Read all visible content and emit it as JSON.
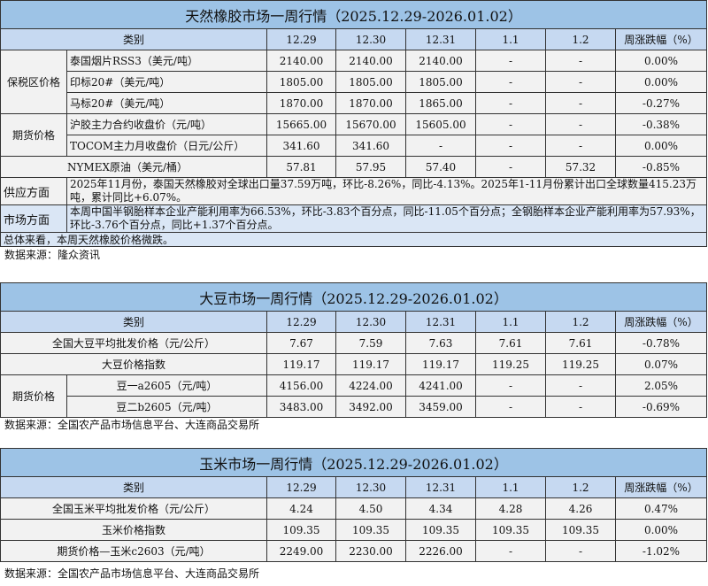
{
  "columns": [
    "类别",
    "12.29",
    "12.30",
    "12.31",
    "1.1",
    "1.2",
    "周涨跌幅（%）"
  ],
  "rubber": {
    "title": "天然橡胶市场一周行情（2025.12.29-2026.01.02）",
    "groups": [
      {
        "label": "保税区价格",
        "rows": [
          {
            "name": "泰国烟片RSS3（美元/吨）",
            "values": [
              "2140.00",
              "2140.00",
              "2140.00",
              "-",
              "-"
            ],
            "change": "0.00%"
          },
          {
            "name": "印标20#（美元/吨）",
            "values": [
              "1805.00",
              "1805.00",
              "1805.00",
              "-",
              "-"
            ],
            "change": "0.00%"
          },
          {
            "name": "马标20#（美元/吨）",
            "values": [
              "1870.00",
              "1870.00",
              "1865.00",
              "-",
              "-"
            ],
            "change": "-0.27%"
          }
        ]
      },
      {
        "label": "期货价格",
        "rows": [
          {
            "name": "沪胶主力合约收盘价（元/吨）",
            "values": [
              "15665.00",
              "15670.00",
              "15605.00",
              "-",
              "-"
            ],
            "change": "-0.38%"
          },
          {
            "name": "TOCOM主力月收盘价（日元/公斤）",
            "values": [
              "341.60",
              "341.60",
              "-",
              "-",
              "-"
            ],
            "change": "0.00%"
          }
        ]
      },
      {
        "label": "",
        "rows": [
          {
            "name": "NYMEX原油（美元/桶）",
            "values": [
              "57.81",
              "57.95",
              "57.40",
              "-",
              "57.32"
            ],
            "change": "-0.85%"
          }
        ]
      }
    ],
    "notes": [
      {
        "label": "供应方面",
        "text": "2025年11月份，泰国天然橡胶对全球出口量37.59万吨，环比-8.26%，同比-4.13%。2025年1-11月份累计出口全球数量415.23万吨，累计同比+6.07%。",
        "style": "gray"
      },
      {
        "label": "市场方面",
        "text": "本周中国半钢胎样本企业产能利用率为66.53%，环比-3.83个百分点，同比-11.05个百分点；全钢胎样本企业产能利用率为57.93%，环比-3.76个百分点，同比+1.37个百分点。",
        "style": "blue"
      }
    ],
    "summary": "总体来看，本周天然橡胶价格微跌。",
    "source": "数据来源：隆众资讯"
  },
  "soybean": {
    "title": "大豆市场一周行情（2025.12.29-2026.01.02）",
    "groups": [
      {
        "label": null,
        "rows": [
          {
            "name": "全国大豆平均批发价格（元/公斤）",
            "values": [
              "7.67",
              "7.59",
              "7.63",
              "7.61",
              "7.61"
            ],
            "change": "-0.78%"
          }
        ]
      },
      {
        "label": null,
        "rows": [
          {
            "name": "大豆价格指数",
            "values": [
              "119.17",
              "119.17",
              "119.17",
              "119.25",
              "119.25"
            ],
            "change": "0.07%"
          }
        ]
      },
      {
        "label": "期货价格",
        "center": true,
        "rows": [
          {
            "name": "豆一a2605（元/吨）",
            "values": [
              "4156.00",
              "4224.00",
              "4241.00",
              "-",
              "-"
            ],
            "change": "2.05%"
          },
          {
            "name": "豆二b2605（元/吨）",
            "values": [
              "3483.00",
              "3492.00",
              "3459.00",
              "-",
              "-"
            ],
            "change": "-0.69%"
          }
        ]
      }
    ],
    "source": "数据来源：全国农产品市场信息平台、大连商品交易所"
  },
  "corn": {
    "title": "玉米市场一周行情（2025.12.29-2026.01.02）",
    "groups": [
      {
        "label": null,
        "rows": [
          {
            "name": "全国玉米平均批发价格（元/公斤）",
            "values": [
              "4.24",
              "4.50",
              "4.34",
              "4.28",
              "4.26"
            ],
            "change": "0.47%"
          }
        ]
      },
      {
        "label": null,
        "rows": [
          {
            "name": "玉米价格指数",
            "values": [
              "109.35",
              "109.35",
              "109.35",
              "109.35",
              "109.35"
            ],
            "change": "0.00%"
          }
        ]
      },
      {
        "label": null,
        "rows": [
          {
            "name": "期货价格—玉米c2603（元/吨）",
            "values": [
              "2249.00",
              "2230.00",
              "2226.00",
              "-",
              "-"
            ],
            "change": "-1.02%"
          }
        ]
      }
    ],
    "source": "数据来源：全国农产品市场信息平台、大连商品交易所"
  }
}
